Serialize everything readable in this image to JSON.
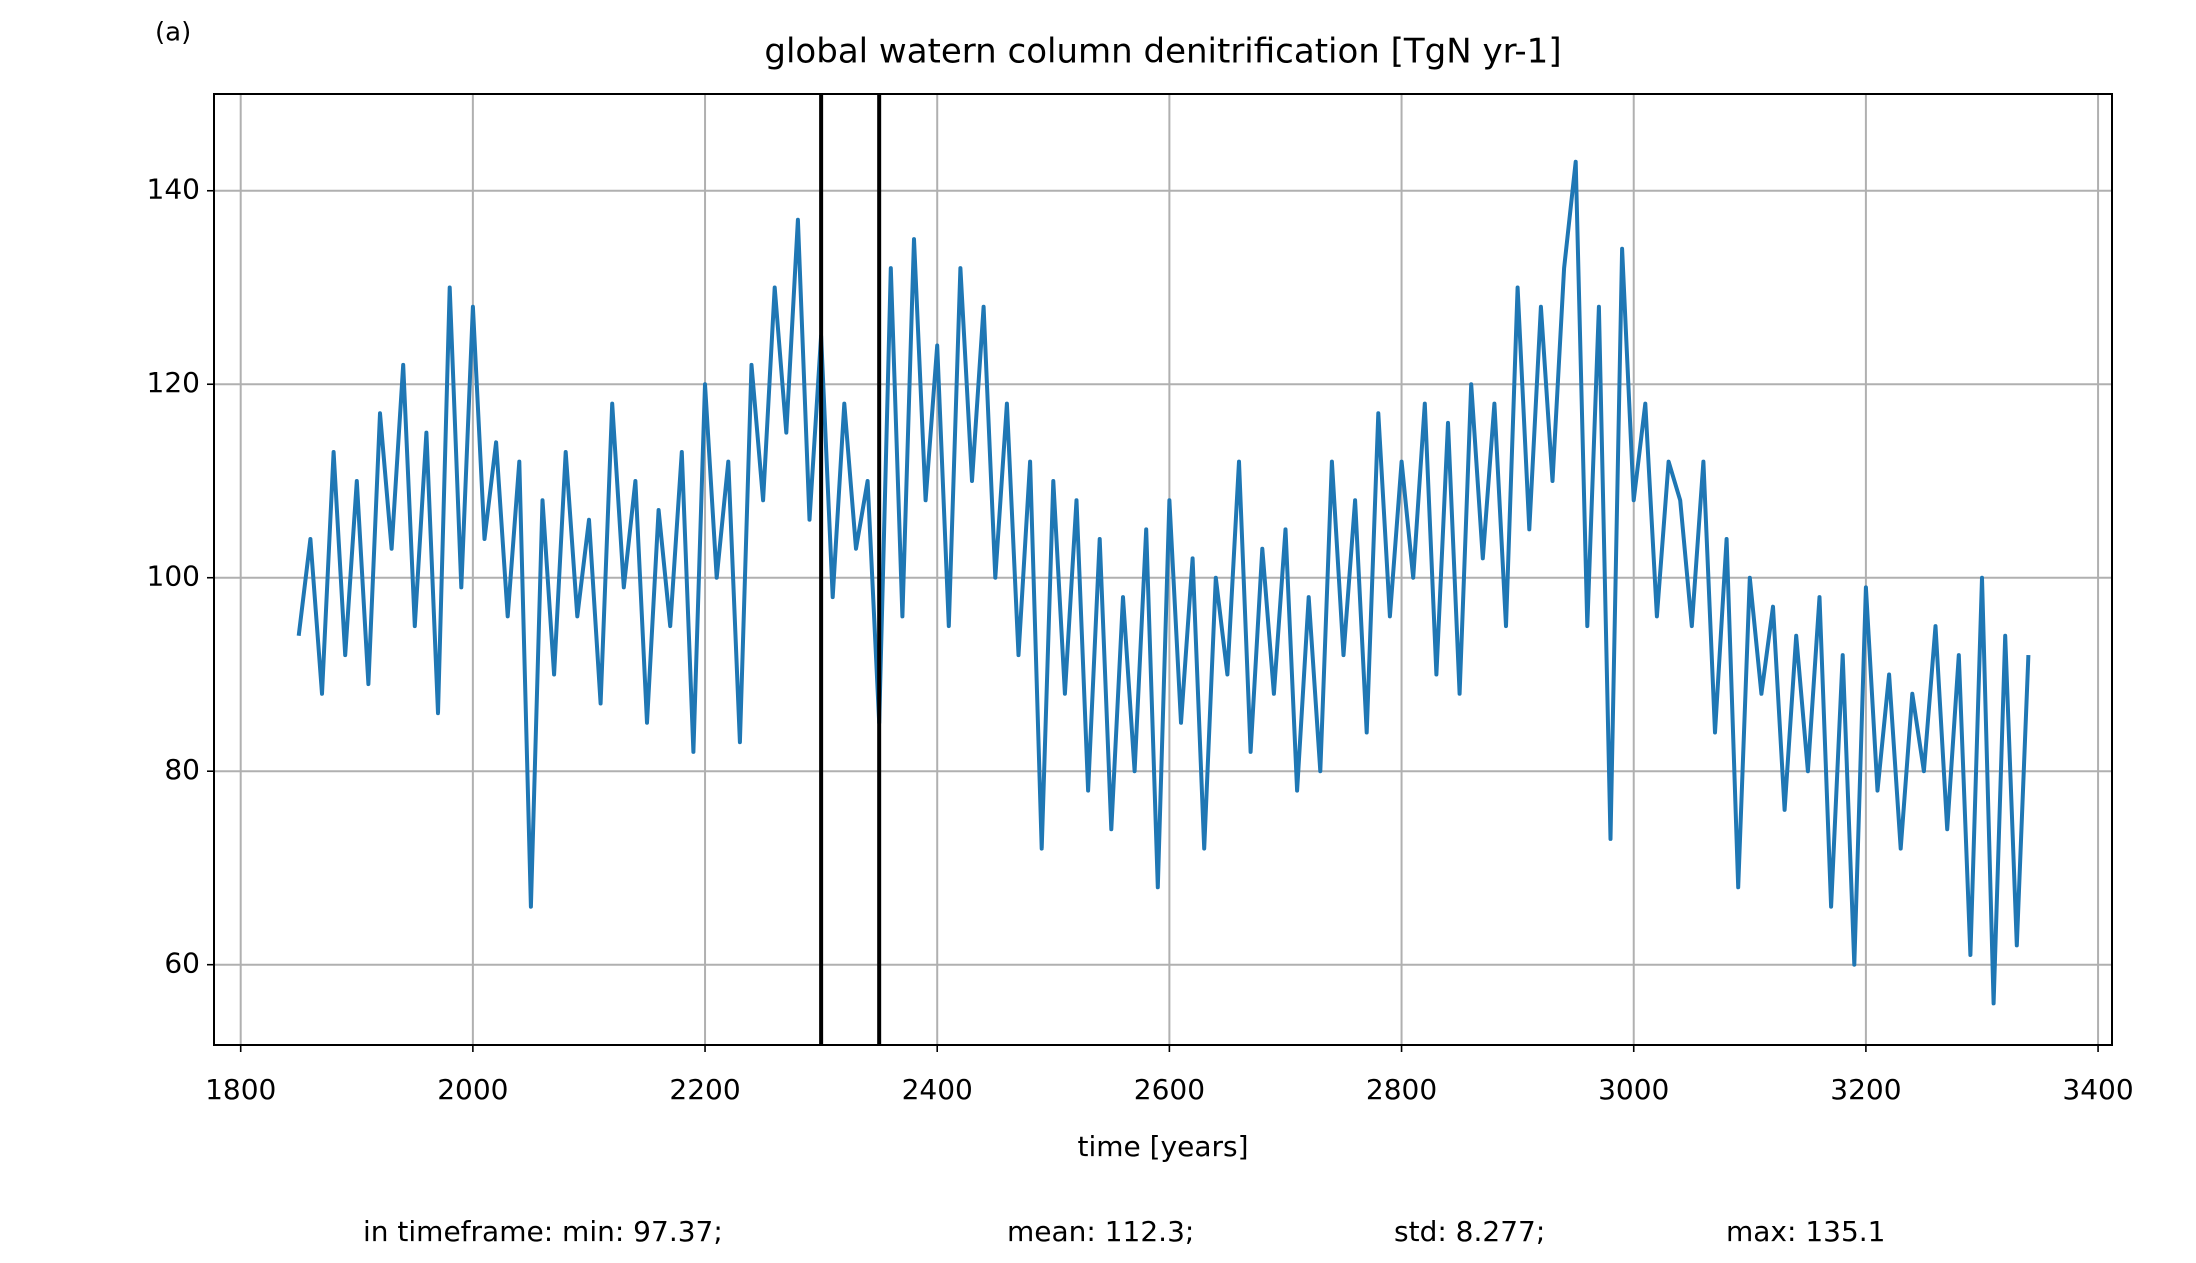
{
  "chart_data": {
    "type": "line",
    "panel_label": "(a)",
    "title": "global watern column denitrification [TgN yr-1]",
    "xlabel": "time [years]",
    "stats": [
      "in timeframe: min: 97.37;",
      "mean: 112.3;",
      "std: 8.277;",
      "max: 135.1"
    ],
    "x": [
      1850,
      1860,
      1870,
      1880,
      1890,
      1900,
      1910,
      1920,
      1930,
      1940,
      1950,
      1960,
      1970,
      1980,
      1990,
      2000,
      2010,
      2020,
      2030,
      2040,
      2050,
      2060,
      2070,
      2080,
      2090,
      2100,
      2110,
      2120,
      2130,
      2140,
      2150,
      2160,
      2170,
      2180,
      2190,
      2200,
      2210,
      2220,
      2230,
      2240,
      2250,
      2260,
      2270,
      2280,
      2290,
      2300,
      2310,
      2320,
      2330,
      2340,
      2350,
      2360,
      2370,
      2380,
      2390,
      2400,
      2410,
      2420,
      2430,
      2440,
      2450,
      2460,
      2470,
      2480,
      2490,
      2500,
      2510,
      2520,
      2530,
      2540,
      2550,
      2560,
      2570,
      2580,
      2590,
      2600,
      2610,
      2620,
      2630,
      2640,
      2650,
      2660,
      2670,
      2680,
      2690,
      2700,
      2710,
      2720,
      2730,
      2740,
      2750,
      2760,
      2770,
      2780,
      2790,
      2800,
      2810,
      2820,
      2830,
      2840,
      2850,
      2860,
      2870,
      2880,
      2890,
      2900,
      2910,
      2920,
      2930,
      2940,
      2950,
      2960,
      2970,
      2980,
      2990,
      3000,
      3010,
      3020,
      3030,
      3040,
      3050,
      3060,
      3070,
      3080,
      3090,
      3100,
      3110,
      3120,
      3130,
      3140,
      3150,
      3160,
      3170,
      3180,
      3190,
      3200,
      3210,
      3220,
      3230,
      3240,
      3250,
      3260,
      3270,
      3280,
      3290,
      3300,
      3310,
      3320,
      3330,
      3340
    ],
    "series": [
      {
        "name": "denitrification",
        "color": "#1f77b4",
        "values": [
          94,
          104,
          88,
          113,
          92,
          110,
          89,
          117,
          103,
          122,
          95,
          115,
          86,
          130,
          99,
          128,
          104,
          114,
          96,
          112,
          66,
          108,
          90,
          113,
          96,
          106,
          87,
          118,
          99,
          110,
          85,
          107,
          95,
          113,
          82,
          120,
          100,
          112,
          83,
          122,
          108,
          130,
          115,
          137,
          106,
          125,
          98,
          118,
          103,
          110,
          85,
          132,
          96,
          135,
          108,
          124,
          95,
          132,
          110,
          128,
          100,
          118,
          92,
          112,
          72,
          110,
          88,
          108,
          78,
          104,
          74,
          98,
          80,
          105,
          68,
          108,
          85,
          102,
          72,
          100,
          90,
          112,
          82,
          103,
          88,
          105,
          78,
          98,
          80,
          112,
          92,
          108,
          84,
          117,
          96,
          112,
          100,
          118,
          90,
          116,
          88,
          120,
          102,
          118,
          95,
          130,
          105,
          128,
          110,
          132,
          143,
          95,
          128,
          73,
          134,
          108,
          118,
          96,
          112,
          108,
          95,
          112,
          84,
          104,
          68,
          100,
          88,
          97,
          76,
          94,
          80,
          98,
          66,
          92,
          60,
          99,
          78,
          90,
          72,
          88,
          80,
          95,
          74,
          92,
          61,
          100,
          56,
          94,
          62,
          92
        ]
      }
    ],
    "vlines": [
      2300,
      2350
    ],
    "vline_color": "#000000",
    "xlim": [
      1777,
      3412
    ],
    "ylim": [
      51.7,
      150
    ],
    "xticks": [
      1800,
      2000,
      2200,
      2400,
      2600,
      2800,
      3000,
      3200,
      3400
    ],
    "yticks": [
      60,
      80,
      100,
      120,
      140
    ],
    "grid": true
  }
}
